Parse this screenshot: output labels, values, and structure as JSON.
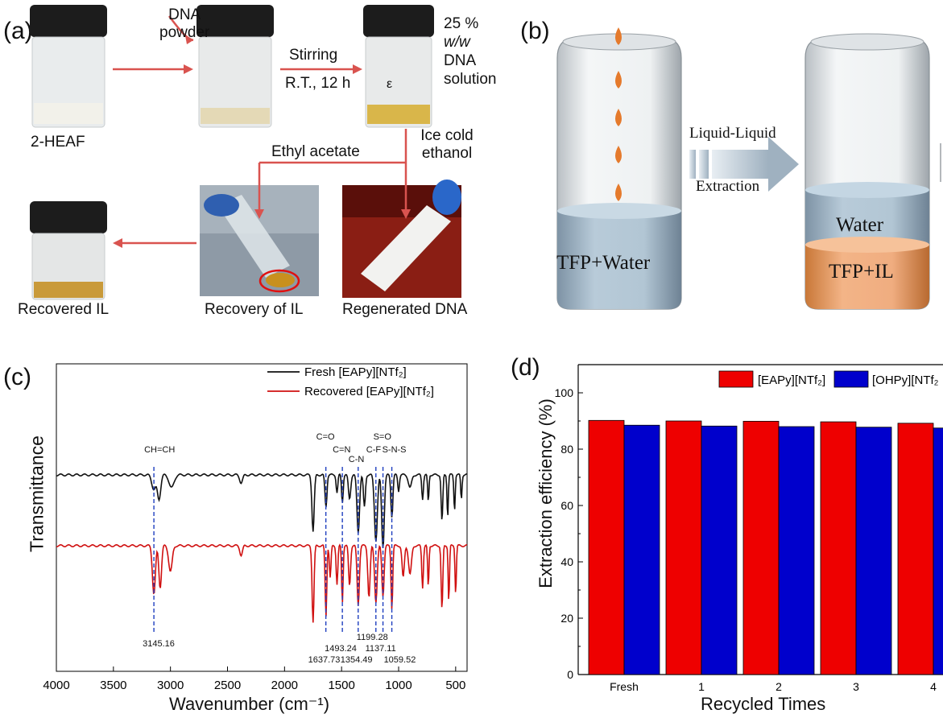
{
  "panels": {
    "a": {
      "letter": "(a)",
      "label_2heaf": "2-HEAF",
      "label_dna_powder_1": "DNA",
      "label_dna_powder_2": "powder",
      "label_stirring": "Stirring",
      "label_rt": "R.T., 12 h",
      "label_solution_1": "25 %",
      "label_solution_2": "w/w",
      "label_solution_3": "DNA",
      "label_solution_4": "solution",
      "label_ice_1": "Ice cold",
      "label_ice_2": "ethanol",
      "label_ethyl": "Ethyl acetate",
      "label_recovered_il": "Recovered IL",
      "label_recovery_il": "Recovery of IL",
      "label_regenerated": "Regenerated DNA",
      "vial_mark": "ε"
    },
    "b": {
      "letter": "(b)",
      "label_ll": "Liquid-Liquid",
      "label_extraction": "Extraction",
      "label_tfp_water": "TFP+Water",
      "label_water": "Water",
      "label_tfp_il": "TFP+IL"
    },
    "c": {
      "letter": "(c)",
      "ylabel": "Transmittance",
      "xlabel": "Wavenumber (cm⁻¹)",
      "legend_fresh": "Fresh [EAPy][NTf₂]",
      "legend_recovered": "Recovered [EAPy][NTf₂]",
      "xticks": [
        "4000",
        "3500",
        "3000",
        "2500",
        "2000",
        "1500",
        "1000",
        "500"
      ],
      "peak_labels_top": [
        "CH=CH",
        "C=O",
        "C=N",
        "C-N",
        "C-F",
        "S=O",
        "S-N-S"
      ],
      "peak_labels_bottom": [
        "3145.16",
        "1637.73",
        "1493.24",
        "1354.49",
        "1199.28",
        "1137.11",
        "1059.52"
      ],
      "colors": {
        "fresh": "#111111",
        "recovered": "#d01010",
        "guide": "#1f3fbf"
      }
    },
    "d": {
      "letter": "(d)",
      "ylabel": "Extraction efficiency (%)",
      "xlabel": "Recycled Times",
      "legend_1": "[EAPy][NTf₂]",
      "legend_2": "[OHPy][NTf₂",
      "colors": {
        "s1": "#ee0000",
        "s2": "#0000cc"
      }
    }
  },
  "chart_data": [
    {
      "type": "line",
      "panel": "c",
      "xlabel": "Wavenumber (cm⁻¹)",
      "ylabel": "Transmittance",
      "xlim": [
        4000,
        400
      ],
      "series": [
        {
          "name": "Fresh [EAPy][NTf₂]"
        },
        {
          "name": "Recovered [EAPy][NTf₂]"
        }
      ],
      "annotations": [
        {
          "label": "CH=CH",
          "x": 3145.16
        },
        {
          "label": "C=O",
          "x": 1637.73
        },
        {
          "label": "C=N",
          "x": 1493.24
        },
        {
          "label": "C-N",
          "x": 1354.49
        },
        {
          "label": "C-F",
          "x": 1199.28
        },
        {
          "label": "S=O",
          "x": 1137.11
        },
        {
          "label": "S-N-S",
          "x": 1059.52
        }
      ]
    },
    {
      "type": "bar",
      "panel": "d",
      "xlabel": "Recycled Times",
      "ylabel": "Extraction efficiency (%)",
      "categories": [
        "Fresh",
        "1",
        "2",
        "3",
        "4"
      ],
      "ylim": [
        0,
        110
      ],
      "yticks": [
        0,
        20,
        40,
        60,
        80,
        100
      ],
      "series": [
        {
          "name": "[EAPy][NTf₂]",
          "values": [
            90.2,
            90.0,
            89.9,
            89.7,
            89.2
          ]
        },
        {
          "name": "[OHPy][NTf₂",
          "values": [
            88.5,
            88.2,
            88.0,
            87.8,
            87.5
          ]
        }
      ]
    }
  ]
}
